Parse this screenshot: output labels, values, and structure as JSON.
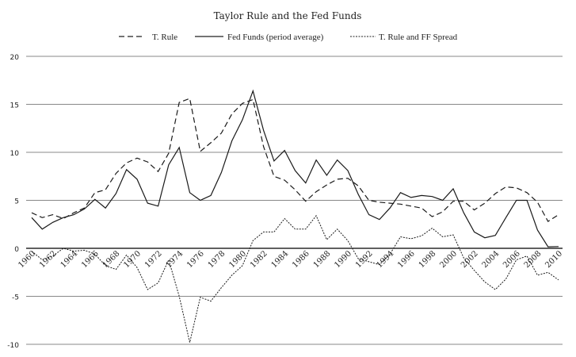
{
  "chart_data": {
    "type": "line",
    "title": "Taylor Rule and the Fed Funds",
    "xlabel": "",
    "ylabel": "",
    "ylim": [
      -10,
      20
    ],
    "yticks": [
      20,
      15,
      10,
      5,
      0,
      -5,
      -10
    ],
    "grid": true,
    "legend_position": "top",
    "x": [
      1960,
      1961,
      1962,
      1963,
      1964,
      1965,
      1966,
      1967,
      1968,
      1969,
      1970,
      1971,
      1972,
      1973,
      1974,
      1975,
      1976,
      1977,
      1978,
      1979,
      1980,
      1981,
      1982,
      1983,
      1984,
      1985,
      1986,
      1987,
      1988,
      1989,
      1990,
      1991,
      1992,
      1993,
      1994,
      1995,
      1996,
      1997,
      1998,
      1999,
      2000,
      2001,
      2002,
      2003,
      2004,
      2005,
      2006,
      2007,
      2008,
      2009,
      2010
    ],
    "xtick_labels": [
      "1960",
      "1962",
      "1964",
      "1966",
      "1968",
      "1970",
      "1972",
      "1974",
      "1976",
      "1978",
      "1980",
      "1982",
      "1984",
      "1986",
      "1988",
      "1990",
      "1992",
      "1994",
      "1996",
      "1998",
      "2000",
      "2002",
      "2004",
      "2006",
      "2008",
      "2010"
    ],
    "series": [
      {
        "name": "T. Rule",
        "style": "dashed",
        "values": [
          3.7,
          3.2,
          3.5,
          3.1,
          3.7,
          4.2,
          5.8,
          6.1,
          7.8,
          8.9,
          9.4,
          9.0,
          8.0,
          9.9,
          15.2,
          15.6,
          10.1,
          11.0,
          12.0,
          14.0,
          15.1,
          15.5,
          10.6,
          7.5,
          7.1,
          6.1,
          4.9,
          5.9,
          6.6,
          7.2,
          7.3,
          6.5,
          5.0,
          4.8,
          4.7,
          4.6,
          4.4,
          4.2,
          3.3,
          3.8,
          4.9,
          4.9,
          4.0,
          4.7,
          5.7,
          6.4,
          6.3,
          5.8,
          4.8,
          2.8,
          3.5
        ]
      },
      {
        "name": "Fed Funds (period average)",
        "style": "solid",
        "values": [
          3.2,
          2.0,
          2.7,
          3.2,
          3.5,
          4.1,
          5.1,
          4.2,
          5.7,
          8.2,
          7.2,
          4.7,
          4.4,
          8.7,
          10.5,
          5.8,
          5.0,
          5.5,
          7.9,
          11.2,
          13.4,
          16.4,
          12.3,
          9.1,
          10.2,
          8.1,
          6.8,
          9.2,
          7.6,
          9.2,
          8.1,
          5.6,
          3.5,
          3.0,
          4.2,
          5.8,
          5.3,
          5.5,
          5.4,
          5.0,
          6.2,
          3.7,
          1.7,
          1.1,
          1.35,
          3.2,
          5.0,
          5.0,
          1.9,
          0.16,
          0.18
        ]
      },
      {
        "name": "T. Rule and FF Spread",
        "style": "dotted",
        "values": [
          -0.3,
          -1.2,
          -0.8,
          0.0,
          -0.3,
          -0.2,
          -0.6,
          -1.8,
          -2.2,
          -0.7,
          -2.0,
          -4.3,
          -3.6,
          -1.2,
          -5.0,
          -9.8,
          -5.1,
          -5.5,
          -4.1,
          -2.8,
          -1.8,
          0.8,
          1.7,
          1.7,
          3.1,
          2.0,
          2.0,
          3.4,
          0.9,
          2.0,
          0.8,
          -1.1,
          -1.4,
          -1.7,
          -0.6,
          1.2,
          1.0,
          1.3,
          2.1,
          1.2,
          1.4,
          -1.0,
          -2.3,
          -3.5,
          -4.3,
          -3.2,
          -1.2,
          -0.8,
          -2.8,
          -2.5,
          -3.3
        ]
      }
    ]
  }
}
